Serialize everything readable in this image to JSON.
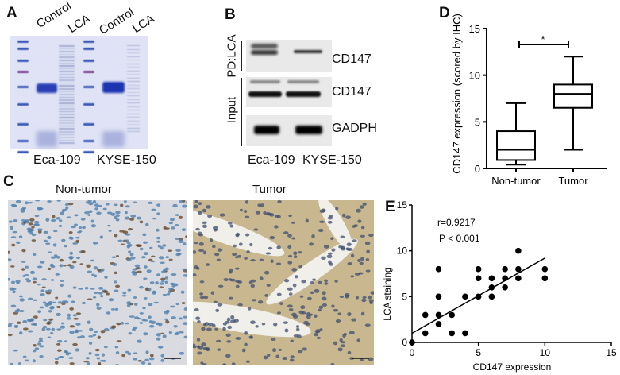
{
  "panels": {
    "a": {
      "letter": "A",
      "lanes": [
        "Control",
        "LCA",
        "Control",
        "LCA"
      ],
      "cells": [
        "Eca-109",
        "KYSE-150"
      ]
    },
    "b": {
      "letter": "B",
      "groups": [
        "PD:LCA",
        "Input"
      ],
      "bands": [
        "CD147",
        "CD147",
        "GADPH"
      ],
      "cells": [
        "Eca-109",
        "KYSE-150"
      ]
    },
    "c": {
      "letter": "C",
      "titles": [
        "Non-tumor",
        "Tumor"
      ]
    },
    "d": {
      "letter": "D"
    },
    "e": {
      "letter": "E"
    }
  },
  "chart_data": [
    {
      "type": "box",
      "panel": "D",
      "ylabel": "CD147 expression (scored by IHC)",
      "xlabel": "",
      "ylim": [
        0,
        15
      ],
      "yticks": [
        0,
        5,
        10,
        15
      ],
      "categories": [
        "Non-tumor",
        "Tumor"
      ],
      "boxes": [
        {
          "min": 0.4,
          "q1": 0.9,
          "median": 2,
          "q3": 4,
          "max": 7
        },
        {
          "min": 2,
          "q1": 6.5,
          "median": 8,
          "q3": 9,
          "max": 12
        }
      ],
      "annotation": "*",
      "grid": false
    },
    {
      "type": "scatter",
      "panel": "E",
      "xlabel": "CD147 expression",
      "ylabel": "LCA staining",
      "xlim": [
        0,
        15
      ],
      "ylim": [
        0,
        15
      ],
      "xticks": [
        0,
        5,
        10,
        15
      ],
      "yticks": [
        0,
        5,
        10,
        15
      ],
      "annotations": [
        "r=0.9217",
        "P < 0.001"
      ],
      "points": [
        [
          0,
          0
        ],
        [
          1,
          1
        ],
        [
          1,
          3
        ],
        [
          2,
          2
        ],
        [
          2,
          3
        ],
        [
          2,
          5
        ],
        [
          2,
          8
        ],
        [
          3,
          1
        ],
        [
          3,
          3
        ],
        [
          4,
          1
        ],
        [
          4,
          5
        ],
        [
          5,
          5
        ],
        [
          5,
          7
        ],
        [
          5,
          8
        ],
        [
          6,
          5
        ],
        [
          6,
          6
        ],
        [
          6,
          7
        ],
        [
          7,
          6
        ],
        [
          7,
          7
        ],
        [
          7,
          8
        ],
        [
          8,
          7
        ],
        [
          8,
          8
        ],
        [
          8,
          10
        ],
        [
          10,
          7
        ],
        [
          10,
          8
        ]
      ],
      "fit_line": [
        [
          0,
          1
        ],
        [
          10,
          9.2
        ]
      ],
      "grid": false
    }
  ]
}
